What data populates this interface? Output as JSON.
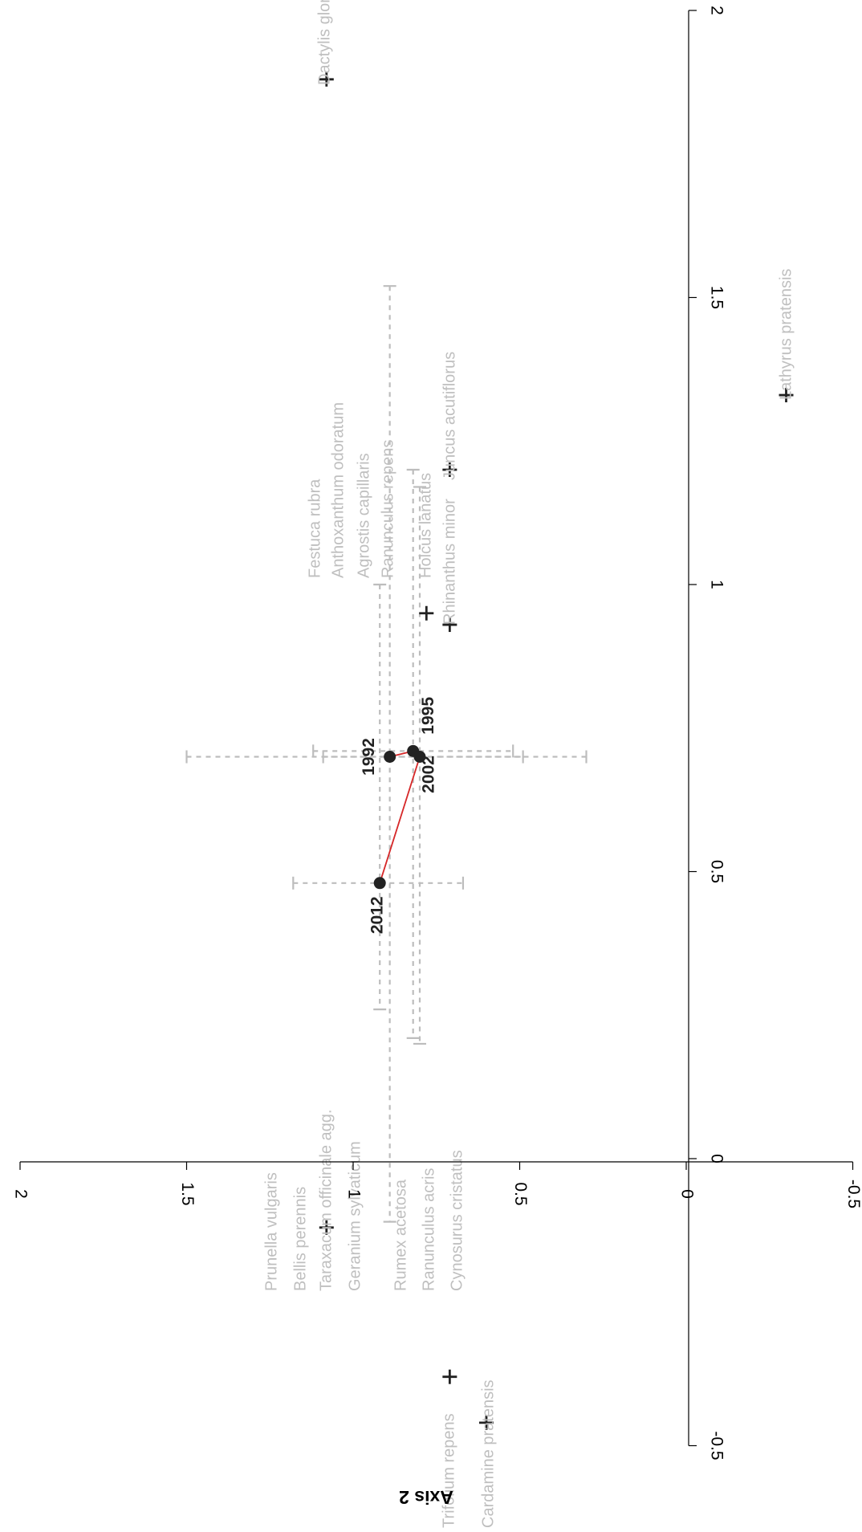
{
  "chart_data": {
    "type": "scatter",
    "orientation": "rotated-90-clockwise",
    "title": "",
    "xlabel": "",
    "ylabel": "Axis 2",
    "x_axis": {
      "lim": [
        -0.5,
        2
      ],
      "ticks": [
        -0.5,
        0,
        0.5,
        1,
        1.5,
        2
      ],
      "tick_labels": [
        "-0.5",
        "0",
        "0.5",
        "1",
        "1.5",
        "2"
      ]
    },
    "y_axis": {
      "lim": [
        -0.5,
        2
      ],
      "ticks": [
        -0.5,
        0,
        0.5,
        1,
        1.5,
        2
      ],
      "tick_labels": [
        "-0.5",
        "0",
        "0.5",
        "1",
        "1.5",
        "2"
      ]
    },
    "grid": false,
    "legend": "none",
    "colors": {
      "trajectory": "#d62728",
      "points": "#222222",
      "species_labels": "#bfbfbf",
      "error_bars": "#bdbdbd",
      "axis": "#000000"
    },
    "years": [
      {
        "label": "1992",
        "x": 0.7,
        "y": 0.89,
        "x_range": [
          0.3,
          1.5
        ],
        "y_range": [
          -0.11,
          1.52
        ]
      },
      {
        "label": "1995",
        "x": 0.71,
        "y": 0.82,
        "x_range": [
          0.52,
          1.12
        ],
        "y_range": [
          0.21,
          1.2
        ]
      },
      {
        "label": "2002",
        "x": 0.7,
        "y": 0.8,
        "x_range": [
          0.49,
          1.09
        ],
        "y_range": [
          0.2,
          1.17
        ]
      },
      {
        "label": "2012",
        "x": 0.48,
        "y": 0.92,
        "x_range": [
          0.67,
          1.18
        ],
        "y_range": [
          0.26,
          1.0
        ]
      }
    ],
    "trajectory_order": [
      "1992",
      "1995",
      "2002",
      "2012"
    ],
    "species": [
      {
        "label": "Dactylis glomerata",
        "x": 1.88,
        "y": 1.08,
        "marker": true
      },
      {
        "label": "Lathyrus pratensis",
        "x": 1.33,
        "y": -0.3,
        "marker": true
      },
      {
        "label": "Juncus acutiflorus",
        "x": 1.2,
        "y": 0.71,
        "marker": true
      },
      {
        "label": "Festuca rubra",
        "x": null,
        "y": null,
        "marker": false
      },
      {
        "label": "Anthoxanthum odoratum",
        "x": null,
        "y": null,
        "marker": false
      },
      {
        "label": "Agrostis capillaris",
        "x": null,
        "y": null,
        "marker": false
      },
      {
        "label": "Ranunculus repens",
        "x": null,
        "y": null,
        "marker": false
      },
      {
        "label": "Holcus lanatus",
        "x": 0.95,
        "y": 0.78,
        "marker": true
      },
      {
        "label": "Rhinanthus minor",
        "x": 0.93,
        "y": 0.71,
        "marker": true
      },
      {
        "label": "Prunella vulgaris",
        "x": null,
        "y": null,
        "marker": false
      },
      {
        "label": "Bellis perennis",
        "x": null,
        "y": null,
        "marker": false
      },
      {
        "label": "Taraxacum officinale agg.",
        "x": -0.12,
        "y": 1.08,
        "marker": true
      },
      {
        "label": "Geranium sylvaticum",
        "x": null,
        "y": null,
        "marker": false
      },
      {
        "label": "Rumex acetosa",
        "x": null,
        "y": null,
        "marker": false
      },
      {
        "label": "Ranunculus acris",
        "x": null,
        "y": null,
        "marker": false
      },
      {
        "label": "Cynosurus cristatus",
        "x": null,
        "y": null,
        "marker": false
      },
      {
        "label": "Trifolium repens",
        "x": -0.38,
        "y": 0.71,
        "marker": true
      },
      {
        "label": "Cardamine pratensis",
        "x": -0.46,
        "y": 0.6,
        "marker": true
      }
    ]
  }
}
